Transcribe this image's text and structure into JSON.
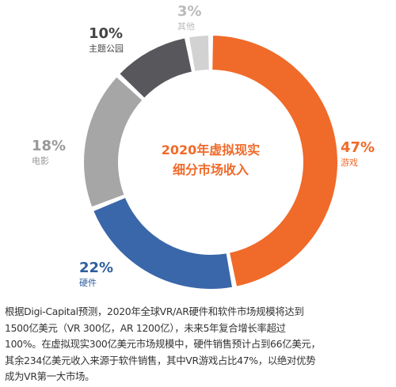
{
  "chart_data": {
    "type": "donut",
    "center_title": [
      "2020年虚拟现实",
      "细分市场收入"
    ],
    "segments": [
      {
        "name": "游戏",
        "value": 47,
        "value_label": "47%",
        "color": "#f06a2a",
        "label_color": "#f06a2a"
      },
      {
        "name": "硬件",
        "value": 22,
        "value_label": "22%",
        "color": "#3a67a9",
        "label_color": "#2e5e9e"
      },
      {
        "name": "电影",
        "value": 18,
        "value_label": "18%",
        "color": "#a6a6a6",
        "label_color": "#999999"
      },
      {
        "name": "主题公园",
        "value": 10,
        "value_label": "10%",
        "color": "#58585c",
        "label_color": "#444444"
      },
      {
        "name": "其他",
        "value": 3,
        "value_label": "3%",
        "color": "#d2d2d2",
        "label_color": "#bbbbbb"
      }
    ],
    "center_title_color": "#f06a2a"
  },
  "caption": {
    "lines": [
      "根据Digi-Capital预测，2020年全球VR/AR硬件和软件市场规模将达到",
      "1500亿美元（VR 300亿，AR 1200亿），未来5年复合增长率超过",
      "100%。在虚拟现实300亿美元市场规模中，硬件销售预计占到66亿美元，",
      "其余234亿美元收入来源于软件销售，其中VR游戏占比47%，以绝对优势",
      "成为VR第一大市场。"
    ]
  }
}
